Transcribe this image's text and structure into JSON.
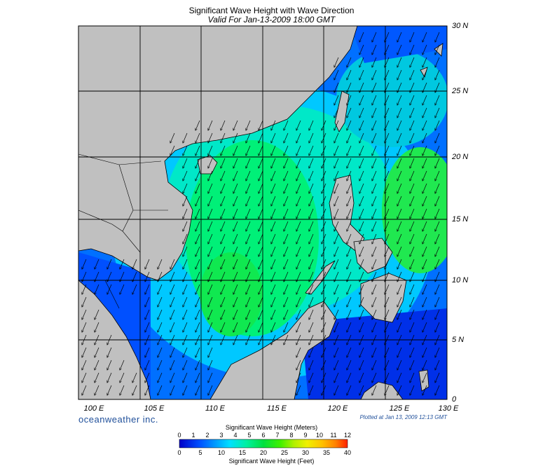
{
  "header": {
    "title": "Significant Wave Height with Wave Direction",
    "subtitle": "Valid For Jan-13-2009 18:00 GMT"
  },
  "map": {
    "lat_labels": [
      "30 N",
      "25 N",
      "20 N",
      "15 N",
      "10 N",
      "5 N",
      "0"
    ],
    "lon_labels": [
      "100 E",
      "105 E",
      "110 E",
      "115 E",
      "120 E",
      "125 E",
      "130 E"
    ],
    "land_color": "#c0c0c0",
    "grid_color": "#000000",
    "arrow_direction": "toward south-southwest (northeast monsoon)"
  },
  "footer": {
    "brand": "oceanweather inc.",
    "plotted": "Plotted at Jan 13, 2009 12:13 GMT"
  },
  "colorbar": {
    "meters_title": "Significant Wave Height (Meters)",
    "meters_ticks": [
      "0",
      "1",
      "2",
      "3",
      "4",
      "5",
      "6",
      "7",
      "8",
      "9",
      "10",
      "11",
      "12"
    ],
    "feet_title": "Significant Wave Height (Feet)",
    "feet_ticks": [
      "0",
      "5",
      "10",
      "15",
      "20",
      "25",
      "30",
      "35",
      "40"
    ],
    "colors": [
      "#0000c8",
      "#0050ff",
      "#00a0ff",
      "#00e0ff",
      "#00f0a0",
      "#00e040",
      "#40f000",
      "#b0f000",
      "#f0f000",
      "#ffc000",
      "#ff8000",
      "#ff3000"
    ]
  }
}
